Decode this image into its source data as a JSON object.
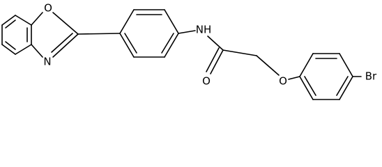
{
  "molecule": {
    "atoms": [
      {
        "label": "O"
      },
      {
        "label": "N"
      },
      {
        "label": "NH"
      },
      {
        "label": "O"
      },
      {
        "label": "O"
      },
      {
        "label": "Br"
      }
    ]
  }
}
